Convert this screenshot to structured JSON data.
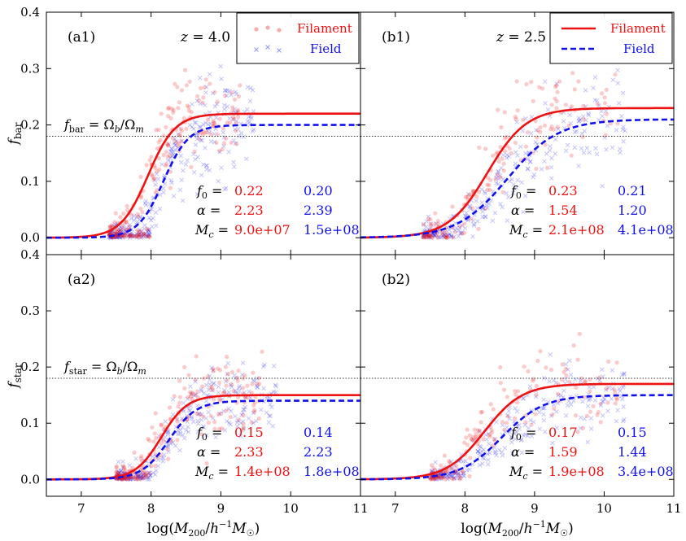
{
  "figure": {
    "xlabel": "log(M200/h⁻¹M☉)",
    "ylabel_bar": "fbar",
    "ylabel_star": "fstar",
    "xlim": [
      6.5,
      11
    ],
    "ylim": [
      -0.03,
      0.4
    ],
    "x_ticks": [
      "7",
      "8",
      "9",
      "10",
      "11"
    ],
    "y_ticks": [
      "0.0",
      "0.1",
      "0.2",
      "0.3",
      "0.4"
    ],
    "omega_ratio": 0.18,
    "legend": {
      "filament_label": "Filament",
      "field_label": "Field",
      "placement": "top-right"
    },
    "colors": {
      "filament": "#ee1111",
      "field": "#1111ee",
      "reference_line": "#333333"
    }
  },
  "chart_data": [
    {
      "id": "a1",
      "type": "scatter",
      "panel_tag": "(a1)",
      "redshift": "z = 4.0",
      "ref_label": "fbar = Ωb/Ωm",
      "series": [
        {
          "name": "Filament",
          "f0": 0.22,
          "alpha": 2.23,
          "Mc": 90000000.0,
          "f0_text": "0.22",
          "alpha_text": "2.23",
          "Mc_text": "9.0e+07",
          "scatter": {
            "x_range": [
              7.4,
              9.3
            ],
            "seed": 11,
            "n": 230
          }
        },
        {
          "name": "Field",
          "f0": 0.2,
          "alpha": 2.39,
          "Mc": 150000000.0,
          "f0_text": "0.20",
          "alpha_text": "2.39",
          "Mc_text": "1.5e+08",
          "scatter": {
            "x_range": [
              7.4,
              9.5
            ],
            "seed": 12,
            "n": 300
          }
        }
      ],
      "param_labels": {
        "f0": "f0 =",
        "alpha": "α =",
        "Mc": "Mc ="
      }
    },
    {
      "id": "b1",
      "type": "scatter",
      "panel_tag": "(b1)",
      "redshift": "z = 2.5",
      "ref_label": "",
      "series": [
        {
          "name": "Filament",
          "f0": 0.23,
          "alpha": 1.54,
          "Mc": 210000000.0,
          "f0_text": "0.23",
          "alpha_text": "1.54",
          "Mc_text": "2.1e+08",
          "scatter": {
            "x_range": [
              7.4,
              10.2
            ],
            "seed": 21,
            "n": 170
          }
        },
        {
          "name": "Field",
          "f0": 0.21,
          "alpha": 1.2,
          "Mc": 410000000.0,
          "f0_text": "0.21",
          "alpha_text": "1.20",
          "Mc_text": "4.1e+08",
          "scatter": {
            "x_range": [
              7.4,
              10.3
            ],
            "seed": 22,
            "n": 260
          }
        }
      ],
      "param_labels": {
        "f0": "f0 =",
        "alpha": "α =",
        "Mc": "Mc ="
      }
    },
    {
      "id": "a2",
      "type": "scatter",
      "panel_tag": "(a2)",
      "redshift": "",
      "ref_label": "fstar = Ωb/Ωm",
      "series": [
        {
          "name": "Filament",
          "f0": 0.15,
          "alpha": 2.33,
          "Mc": 140000000.0,
          "f0_text": "0.15",
          "alpha_text": "2.33",
          "Mc_text": "1.4e+08",
          "scatter": {
            "x_range": [
              7.5,
              9.6
            ],
            "seed": 31,
            "n": 220
          }
        },
        {
          "name": "Field",
          "f0": 0.14,
          "alpha": 2.23,
          "Mc": 180000000.0,
          "f0_text": "0.14",
          "alpha_text": "2.23",
          "Mc_text": "1.8e+08",
          "scatter": {
            "x_range": [
              7.5,
              9.8
            ],
            "seed": 32,
            "n": 300
          }
        }
      ],
      "param_labels": {
        "f0": "f0 =",
        "alpha": "α =",
        "Mc": "Mc ="
      }
    },
    {
      "id": "b2",
      "type": "scatter",
      "panel_tag": "(b2)",
      "redshift": "",
      "ref_label": "",
      "series": [
        {
          "name": "Filament",
          "f0": 0.17,
          "alpha": 1.59,
          "Mc": 190000000.0,
          "f0_text": "0.17",
          "alpha_text": "1.59",
          "Mc_text": "1.9e+08",
          "scatter": {
            "x_range": [
              7.5,
              10.2
            ],
            "seed": 41,
            "n": 170
          }
        },
        {
          "name": "Field",
          "f0": 0.15,
          "alpha": 1.44,
          "Mc": 340000000.0,
          "f0_text": "0.15",
          "alpha_text": "1.44",
          "Mc_text": "3.4e+08",
          "scatter": {
            "x_range": [
              7.5,
              10.3
            ],
            "seed": 42,
            "n": 260
          }
        }
      ],
      "param_labels": {
        "f0": "f0 =",
        "alpha": "α =",
        "Mc": "Mc ="
      }
    }
  ]
}
